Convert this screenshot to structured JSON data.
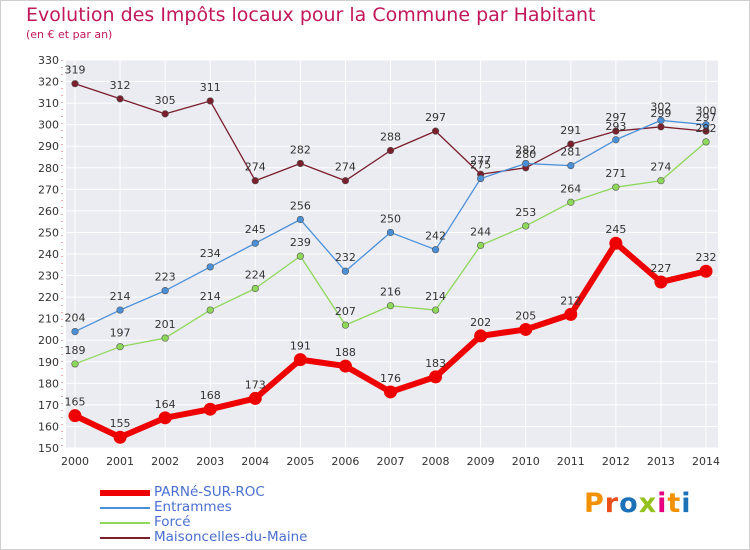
{
  "chart_data": {
    "type": "line",
    "title": "Evolution des Impôts locaux pour la Commune par Habitant",
    "subtitle": "(en € et par an)",
    "xlabel": "",
    "ylabel": "",
    "x": [
      "2000",
      "2001",
      "2002",
      "2003",
      "2004",
      "2005",
      "2006",
      "2007",
      "2008",
      "2009",
      "2010",
      "2011",
      "2012",
      "2013",
      "2014"
    ],
    "ylim": [
      150,
      330
    ],
    "yticks": [
      150,
      160,
      170,
      180,
      190,
      200,
      210,
      220,
      230,
      240,
      250,
      260,
      270,
      280,
      290,
      300,
      310,
      320,
      330
    ],
    "grid": true,
    "legend_position": "bottom-left",
    "series": [
      {
        "name": "PARNé-SUR-ROC",
        "color": "#ee0000",
        "values": [
          165,
          155,
          164,
          168,
          173,
          191,
          188,
          176,
          183,
          202,
          205,
          212,
          245,
          227,
          232
        ]
      },
      {
        "name": "Entrammes",
        "color": "#4a90d9",
        "values": [
          204,
          214,
          223,
          234,
          245,
          256,
          232,
          250,
          242,
          275,
          282,
          281,
          293,
          302,
          300
        ]
      },
      {
        "name": "Forcé",
        "color": "#8ed85a",
        "values": [
          189,
          197,
          201,
          214,
          224,
          239,
          207,
          216,
          214,
          244,
          253,
          264,
          271,
          274,
          292
        ]
      },
      {
        "name": "Maisoncelles-du-Maine",
        "color": "#7a1f2b",
        "values": [
          319,
          312,
          305,
          311,
          274,
          282,
          274,
          288,
          297,
          277,
          280,
          291,
          297,
          299,
          297
        ]
      }
    ],
    "data_labels": [
      [
        "165",
        "155",
        "164",
        "168",
        "173",
        "191",
        "188",
        "176",
        "183",
        "202",
        "205",
        "212",
        "245",
        "227",
        "232"
      ],
      [
        "204",
        "214",
        "223",
        "234",
        "245",
        "256",
        "232",
        "250",
        "242",
        "275",
        "282",
        "281",
        "293",
        "302",
        "300"
      ],
      [
        "189",
        "197",
        "201",
        "214",
        "224",
        "239",
        "207",
        "216",
        "214",
        "244",
        "253",
        "264",
        "271",
        "274",
        "292"
      ],
      [
        "319",
        "312",
        "305",
        "311",
        "274",
        "282",
        "274",
        "288",
        "297",
        "277",
        "280",
        "291",
        "297",
        "299",
        "297"
      ]
    ]
  },
  "brand": {
    "letters": [
      "P",
      "r",
      "o",
      "x",
      "i",
      "t",
      "i"
    ],
    "colors": [
      "#f39200",
      "#e94e1b",
      "#1d71b8",
      "#95c11f",
      "#e6007e",
      "#f39200",
      "#1d71b8"
    ]
  }
}
